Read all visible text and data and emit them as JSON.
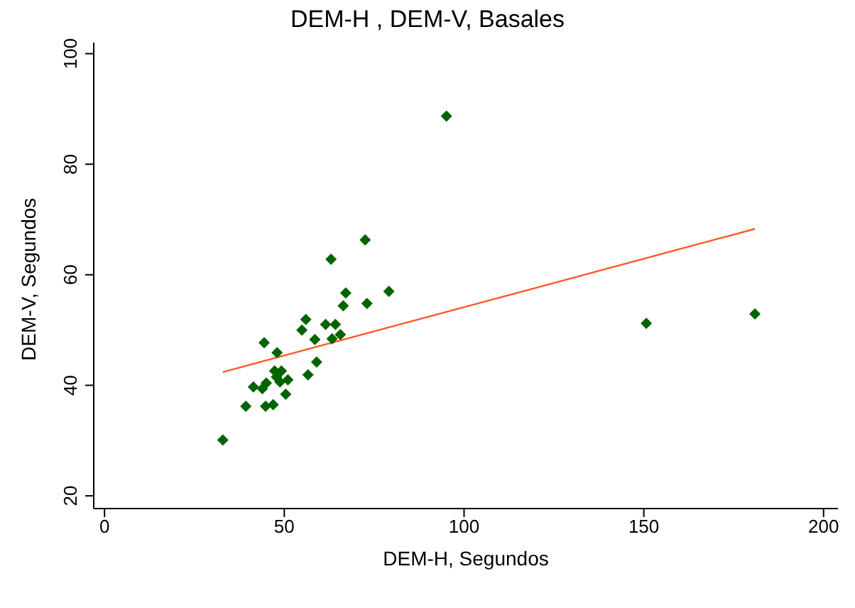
{
  "chart_data": {
    "type": "scatter",
    "title": "DEM-H , DEM-V, Basales",
    "xlabel": "DEM-H, Segundos",
    "ylabel": "DEM-V, Segundos",
    "xlim": [
      -3,
      204
    ],
    "ylim": [
      17.7,
      102
    ],
    "xticks": [
      0,
      50,
      100,
      150,
      200
    ],
    "yticks": [
      20,
      40,
      60,
      80,
      100
    ],
    "grid": false,
    "legend": false,
    "marker": "diamond",
    "series": [
      {
        "color": "#006400",
        "x": [
          32.9,
          39.3,
          41.4,
          43.9,
          45,
          44.4,
          44.8,
          46.9,
          48,
          47.3,
          49.2,
          47.8,
          48.8,
          51,
          50.4,
          54.9,
          56,
          56.6,
          58.5,
          59,
          61.5,
          63,
          63.3,
          64.2,
          65.6,
          66.4,
          67.1,
          72.5,
          73,
          79.1,
          95.1,
          150.7,
          180.9
        ],
        "values": [
          30.1,
          36.2,
          39.7,
          39.4,
          40.4,
          47.7,
          36.2,
          36.5,
          45.9,
          42.6,
          42.6,
          41.5,
          40.6,
          41,
          38.4,
          50,
          51.9,
          41.9,
          48.3,
          44.2,
          51,
          62.8,
          48.4,
          51,
          49.2,
          54.4,
          56.7,
          66.3,
          54.8,
          57,
          88.7,
          51.2,
          52.9
        ]
      },
      {
        "type": "line",
        "color": "#ff5a2a",
        "marker": "none",
        "x": [
          32.9,
          180.9
        ],
        "values": [
          42.4,
          68.3
        ]
      }
    ]
  }
}
